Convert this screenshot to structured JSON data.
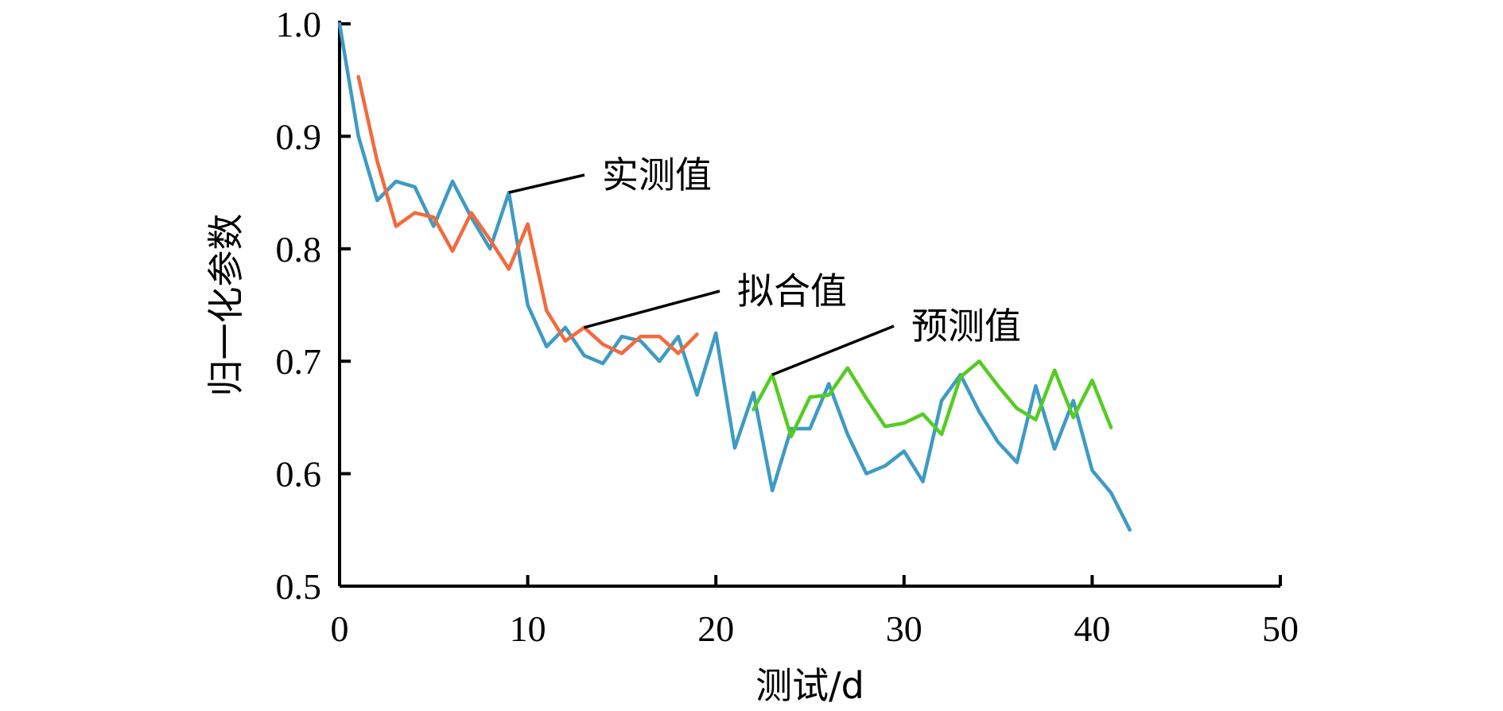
{
  "chart_data": {
    "type": "line",
    "xlabel": "测试/d",
    "ylabel": "归一化参数",
    "xlim": [
      0,
      50
    ],
    "ylim": [
      0.5,
      1.0
    ],
    "x_ticks": [
      "0",
      "10",
      "20",
      "30",
      "40",
      "50"
    ],
    "y_ticks": [
      "0.5",
      "0.6",
      "0.7",
      "0.8",
      "0.9",
      "1.0"
    ],
    "grid": false,
    "series": [
      {
        "name": "实测值",
        "color": "#3d9bc4",
        "x": [
          0,
          1,
          2,
          3,
          4,
          5,
          6,
          7,
          8,
          9,
          10,
          11,
          12,
          13,
          14,
          15,
          16,
          17,
          18,
          19,
          20,
          21,
          22,
          23,
          24,
          25,
          26,
          27,
          28,
          29,
          30,
          31,
          32,
          33,
          34,
          35,
          36,
          37,
          38,
          39,
          40,
          41,
          42
        ],
        "y": [
          1.0,
          0.9,
          0.843,
          0.86,
          0.855,
          0.82,
          0.86,
          0.828,
          0.8,
          0.85,
          0.75,
          0.713,
          0.73,
          0.705,
          0.698,
          0.722,
          0.718,
          0.7,
          0.722,
          0.67,
          0.725,
          0.623,
          0.672,
          0.585,
          0.64,
          0.64,
          0.68,
          0.635,
          0.6,
          0.607,
          0.62,
          0.593,
          0.665,
          0.688,
          0.655,
          0.628,
          0.61,
          0.678,
          0.622,
          0.665,
          0.603,
          0.583,
          0.55
        ]
      },
      {
        "name": "拟合值",
        "color": "#f26a3d",
        "x": [
          1,
          2,
          3,
          4,
          5,
          6,
          7,
          8,
          9,
          10,
          11,
          12,
          13,
          14,
          15,
          16,
          17,
          18,
          19
        ],
        "y": [
          0.953,
          0.878,
          0.82,
          0.832,
          0.828,
          0.798,
          0.832,
          0.808,
          0.782,
          0.822,
          0.745,
          0.718,
          0.73,
          0.715,
          0.707,
          0.722,
          0.722,
          0.707,
          0.724
        ]
      },
      {
        "name": "预测值",
        "color": "#55cc22",
        "x": [
          22,
          23,
          24,
          25,
          26,
          27,
          28,
          29,
          30,
          31,
          32,
          33,
          34,
          35,
          36,
          37,
          38,
          39,
          40,
          41
        ],
        "y": [
          0.657,
          0.688,
          0.633,
          0.668,
          0.67,
          0.694,
          0.667,
          0.642,
          0.645,
          0.653,
          0.635,
          0.686,
          0.7,
          0.678,
          0.658,
          0.648,
          0.692,
          0.65,
          0.683,
          0.641
        ]
      }
    ],
    "annotations": [
      {
        "text": "实测值",
        "series": 0,
        "point_index": 9
      },
      {
        "text": "拟合值",
        "series": 1,
        "point_index": 12
      },
      {
        "text": "预测值",
        "series": 2,
        "point_index": 1
      }
    ]
  }
}
